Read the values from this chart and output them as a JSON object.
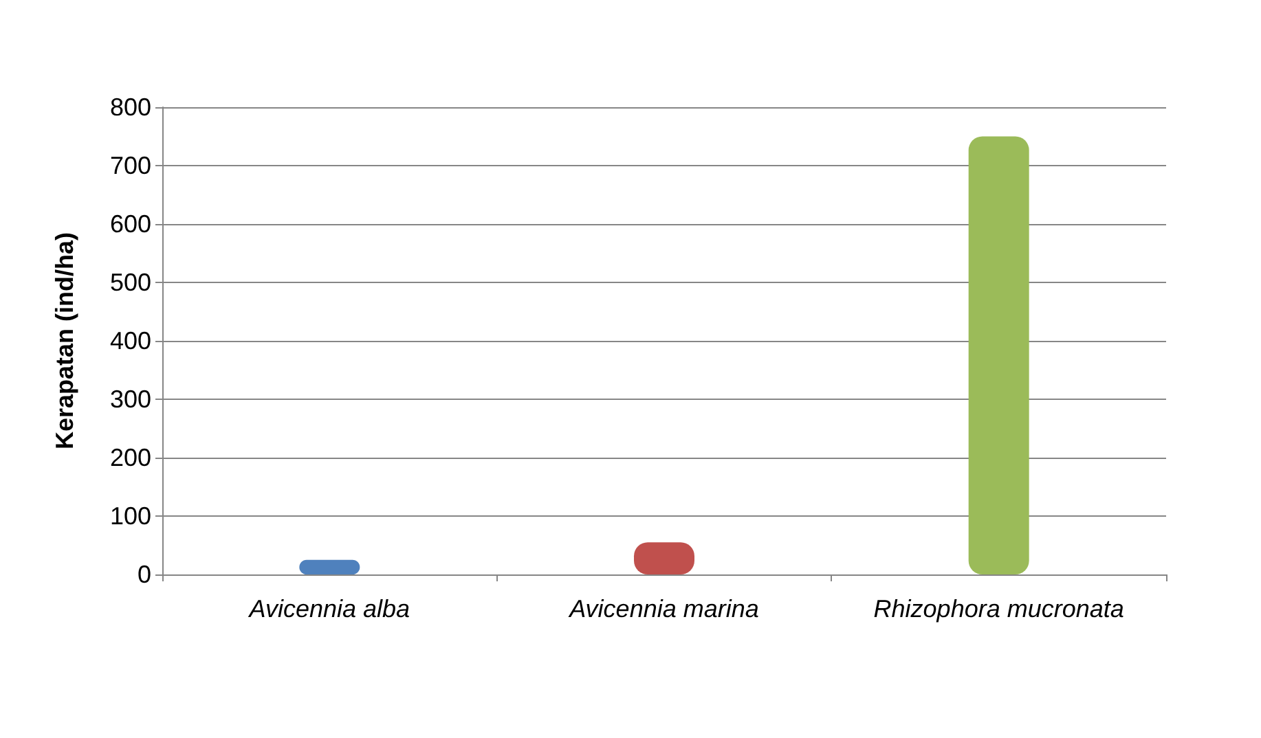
{
  "chart_data": {
    "type": "bar",
    "ylabel": "Kerapatan (ind/ha)",
    "categories": [
      "Avicennia alba",
      "Avicennia marina",
      "Rhizophora mucronata"
    ],
    "values": [
      25,
      55,
      750
    ],
    "colors": [
      "#4f81bd",
      "#c0504d",
      "#9bbb59"
    ],
    "ylim": [
      0,
      800
    ],
    "yticks": [
      0,
      100,
      200,
      300,
      400,
      500,
      600,
      700,
      800
    ],
    "grid": "y"
  }
}
